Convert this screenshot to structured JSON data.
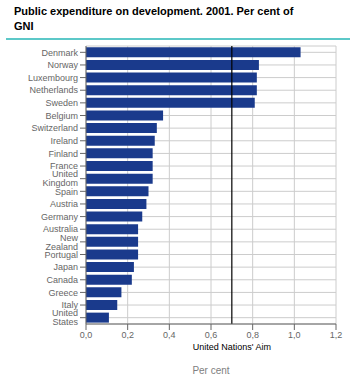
{
  "chart_data": {
    "type": "bar",
    "orientation": "horizontal",
    "title": "Public expenditure on development. 2001. Per cent of\nGNI",
    "xlabel": "Per cent",
    "categories": [
      "Denmark",
      "Norway",
      "Luxembourg",
      "Netherlands",
      "Sweden",
      "Belgium",
      "Switzerland",
      "Ireland",
      "Finland",
      "France",
      "United Kingdom",
      "Spain",
      "Austria",
      "Germany",
      "Australia",
      "New Zealand",
      "Portugal",
      "Japan",
      "Canada",
      "Greece",
      "Italy",
      "United States"
    ],
    "values": [
      1.03,
      0.83,
      0.82,
      0.82,
      0.81,
      0.37,
      0.34,
      0.33,
      0.32,
      0.32,
      0.32,
      0.3,
      0.29,
      0.27,
      0.25,
      0.25,
      0.25,
      0.23,
      0.22,
      0.17,
      0.15,
      0.11
    ],
    "color": "#1a3a8c",
    "xlim": [
      0,
      1.2
    ],
    "xticks": [
      {
        "value": 0.0,
        "label": "0,0"
      },
      {
        "value": 0.2,
        "label": "0,2"
      },
      {
        "value": 0.4,
        "label": "0,4"
      },
      {
        "value": 0.6,
        "label": "0,6"
      },
      {
        "value": 0.8,
        "label": "0,8"
      },
      {
        "value": 1.0,
        "label": "1,0"
      },
      {
        "value": 1.2,
        "label": "1,2"
      }
    ],
    "grid": true,
    "annotations": [
      {
        "text": "United Nations' Aim",
        "x": 0.7
      }
    ]
  }
}
